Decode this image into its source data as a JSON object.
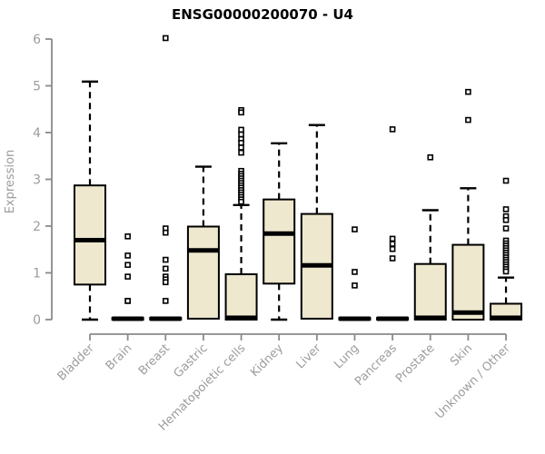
{
  "page": {
    "background_color": "#ffffff"
  },
  "chart_data": {
    "type": "boxplot",
    "title": "ENSG00000200070 - U4",
    "ylabel": "Expression",
    "xlabel": "",
    "ylim": [
      0,
      6.2
    ],
    "yticks": [
      0,
      1,
      2,
      3,
      4,
      5,
      6
    ],
    "grid": false,
    "legend": null,
    "x_label_rotation_deg": 45,
    "categories": [
      "Bladder",
      "Brain",
      "Breast",
      "Gastric",
      "Hematopoietic cells",
      "Kidney",
      "Liver",
      "Lung",
      "Pancreas",
      "Prostate",
      "Skin",
      "Unknown / Other"
    ],
    "boxes": [
      {
        "label": "Bladder",
        "low": 0,
        "q1": 0.75,
        "median": 1.7,
        "q3": 2.87,
        "high": 5.09,
        "outliers": []
      },
      {
        "label": "Brain",
        "low": 0,
        "q1": 0,
        "median": 0.02,
        "q3": 0.04,
        "high": 0.04,
        "outliers": [
          1.78,
          1.37,
          1.17,
          0.92,
          0.4,
          0.4
        ]
      },
      {
        "label": "Breast",
        "low": 0,
        "q1": 0,
        "median": 0.02,
        "q3": 0.04,
        "high": 0.04,
        "outliers": [
          6.02,
          1.95,
          1.86,
          1.28,
          1.09,
          0.92,
          0.86,
          0.8,
          0.4
        ]
      },
      {
        "label": "Gastric",
        "low": 0,
        "q1": 0.02,
        "median": 1.48,
        "q3": 1.99,
        "high": 3.27,
        "outliers": []
      },
      {
        "label": "Hematopoietic cells",
        "low": 0,
        "q1": 0,
        "median": 0.04,
        "q3": 0.97,
        "high": 2.45,
        "outliers": [
          4.48,
          4.43,
          4.06,
          3.96,
          3.86,
          3.78,
          3.68,
          3.57,
          3.18,
          3.12,
          3.07,
          3.02,
          2.97,
          2.92,
          2.87,
          2.82,
          2.77,
          2.72,
          2.67,
          2.62,
          2.57,
          2.52
        ]
      },
      {
        "label": "Kidney",
        "low": 0,
        "q1": 0.77,
        "median": 1.84,
        "q3": 2.57,
        "high": 3.77,
        "outliers": []
      },
      {
        "label": "Liver",
        "low": 0,
        "q1": 0.02,
        "median": 1.16,
        "q3": 2.26,
        "high": 4.16,
        "outliers": []
      },
      {
        "label": "Lung",
        "low": 0,
        "q1": 0,
        "median": 0.02,
        "q3": 0.04,
        "high": 0.04,
        "outliers": [
          1.93,
          1.02,
          0.73
        ]
      },
      {
        "label": "Pancreas",
        "low": 0,
        "q1": 0,
        "median": 0.02,
        "q3": 0.04,
        "high": 0.04,
        "outliers": [
          4.07,
          1.73,
          1.62,
          1.51,
          1.31
        ]
      },
      {
        "label": "Prostate",
        "low": 0,
        "q1": 0,
        "median": 0.04,
        "q3": 1.19,
        "high": 2.34,
        "outliers": [
          3.47
        ]
      },
      {
        "label": "Skin",
        "low": 0,
        "q1": 0,
        "median": 0.15,
        "q3": 1.6,
        "high": 2.81,
        "outliers": [
          4.87,
          4.27
        ]
      },
      {
        "label": "Unknown / Other",
        "low": 0,
        "q1": 0,
        "median": 0.04,
        "q3": 0.34,
        "high": 0.9,
        "outliers": [
          2.97,
          2.36,
          2.21,
          2.13,
          1.95,
          1.69,
          1.63,
          1.58,
          1.53,
          1.48,
          1.43,
          1.38,
          1.33,
          1.28,
          1.23,
          1.18,
          1.13,
          1.08,
          1.03
        ]
      }
    ],
    "colors": {
      "box_fill": "#EDE8CE",
      "box_border": "#000000",
      "median_line": "#000000",
      "whisker": "#000000",
      "outlier_stroke": "#000000",
      "axis_line": "#8A8A8A",
      "axis_text": "#9C9C9C",
      "title_text": "#000000",
      "background": "#FFFFFF"
    }
  }
}
